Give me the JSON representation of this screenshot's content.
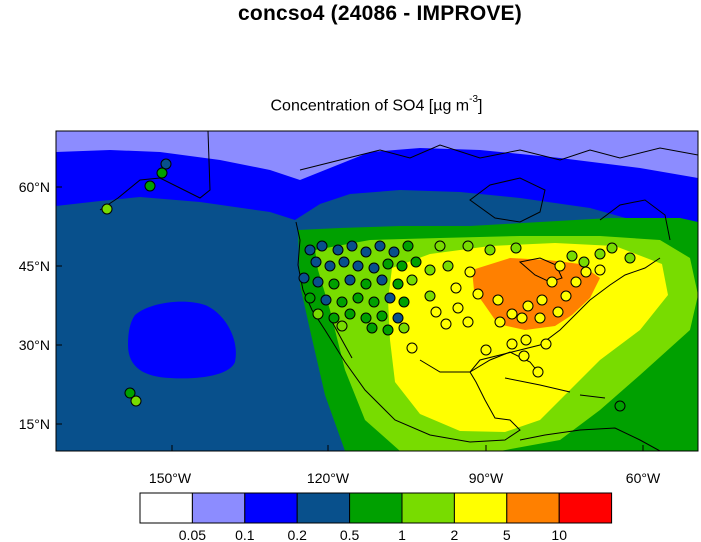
{
  "title": "concso4 (24086 - IMPROVE)",
  "subtitle_main": "Concentration of SO4 [µg m",
  "subtitle_exp": "-3",
  "subtitle_close": "]",
  "lat_labels": [
    "60°N",
    "45°N",
    "30°N",
    "15°N"
  ],
  "lon_labels": [
    "150°W",
    "120°W",
    "90°W",
    "60°W"
  ],
  "colorbar": {
    "colors": [
      "#ffffff",
      "#8c8cff",
      "#0000ff",
      "#08508c",
      "#00a000",
      "#78dc00",
      "#ffff00",
      "#ff8000",
      "#ff0000"
    ],
    "labels": [
      "0.05",
      "0.1",
      "0.2",
      "0.5",
      "1",
      "2",
      "5",
      "10"
    ]
  },
  "map_data": {
    "projection": "cylindrical equidistant",
    "lon_range": [
      -170,
      -52
    ],
    "lat_range": [
      9,
      70
    ],
    "field": "SO4 concentration",
    "units": "µg m-3"
  }
}
